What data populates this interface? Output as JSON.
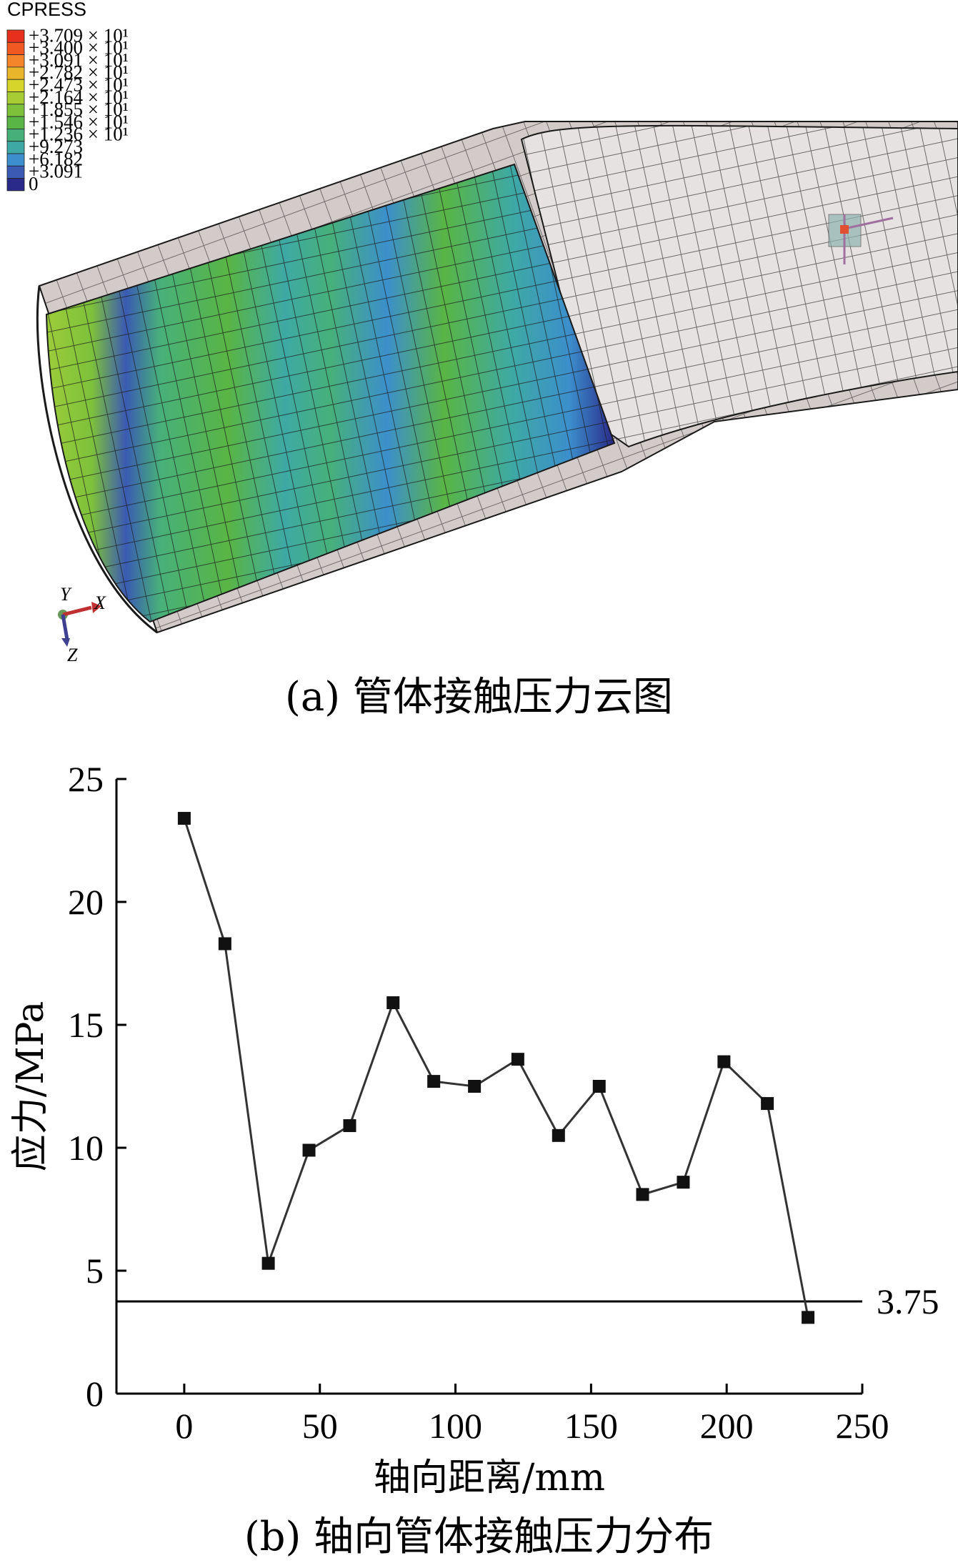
{
  "panel_a": {
    "caption": "(a) 管体接触压力云图",
    "legend": {
      "title": "CPRESS",
      "entries": [
        {
          "label": "+3.709 × 10¹",
          "color": "#e8311c"
        },
        {
          "label": "+3.400 × 10¹",
          "color": "#f05a22"
        },
        {
          "label": "+3.091 × 10¹",
          "color": "#f4852a"
        },
        {
          "label": "+2.782 × 10¹",
          "color": "#e9b62b"
        },
        {
          "label": "+2.473 × 10¹",
          "color": "#d5d52c"
        },
        {
          "label": "+2.164 × 10¹",
          "color": "#a7cc34"
        },
        {
          "label": "+1.855 × 10¹",
          "color": "#7dc13b"
        },
        {
          "label": "+1.546 × 10¹",
          "color": "#59b544"
        },
        {
          "label": "+1.236 × 10¹",
          "color": "#47b07a"
        },
        {
          "label": "+9.273",
          "color": "#3ea9a4"
        },
        {
          "label": "+6.182",
          "color": "#3c8fcc"
        },
        {
          "label": "+3.091",
          "color": "#3a5ab3"
        },
        {
          "label": "0",
          "color": "#2a2a8a"
        }
      ]
    },
    "triad": {
      "x": "X",
      "y": "Y",
      "z": "Z"
    }
  },
  "chart_data": {
    "type": "line",
    "caption": "(b) 轴向管体接触压力分布",
    "xlabel": "轴向距离/mm",
    "ylabel": "应力/MPa",
    "xlim": [
      -25,
      250
    ],
    "ylim": [
      0,
      25
    ],
    "xticks": [
      "0",
      "50",
      "100",
      "150",
      "200",
      "250"
    ],
    "yticks": [
      "0",
      "5",
      "10",
      "15",
      "20",
      "25"
    ],
    "x": [
      0,
      15,
      31,
      46,
      61,
      77,
      92,
      107,
      123,
      138,
      153,
      169,
      184,
      199,
      215,
      230
    ],
    "y": [
      23.4,
      18.3,
      5.3,
      9.9,
      10.9,
      15.9,
      12.7,
      12.5,
      13.6,
      10.5,
      12.5,
      8.1,
      8.6,
      13.5,
      11.8,
      3.1
    ],
    "reference_line": {
      "y": 3.75,
      "label": "3.75"
    }
  }
}
